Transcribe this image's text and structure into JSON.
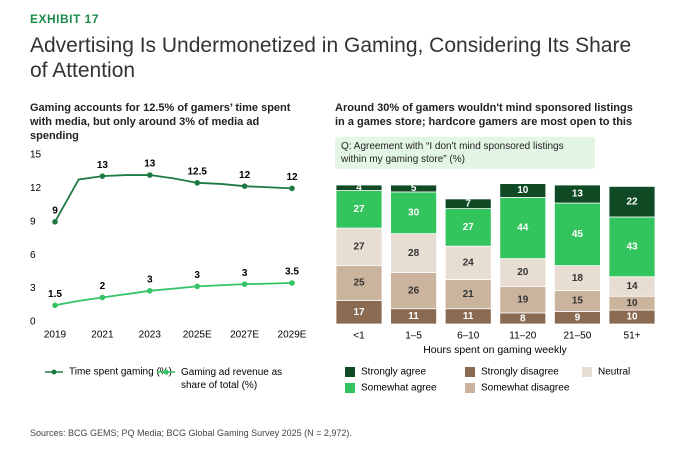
{
  "exhibit": "EXHIBIT 17",
  "title": "Advertising Is Undermonetized in Gaming, Considering Its Share of Attention",
  "source": "Sources: BCG GEMS; PQ Media; BCG Global Gaming Survey 2025 (N = 2,972).",
  "chart_data": [
    {
      "type": "line",
      "title": "Gaming accounts for 12.5% of gamers’ time spent with media, but only around 3% of media ad spending",
      "categories": [
        "2019",
        null,
        "2021",
        null,
        "2023",
        null,
        "2025E",
        null,
        "2027E",
        null,
        "2029E"
      ],
      "series": [
        {
          "name": "Time spent gaming (%)",
          "color": "#1e7a45",
          "values": [
            9,
            12.8,
            13.1,
            13.2,
            13.2,
            12.9,
            12.5,
            12.4,
            12.2,
            12.1,
            12
          ],
          "value_labels": [
            "9",
            null,
            "13",
            null,
            "13",
            null,
            "12.5",
            null,
            "12",
            null,
            "12"
          ]
        },
        {
          "name": "Gaming ad revenue as share of total (%)",
          "color": "#33c463",
          "values": [
            1.5,
            1.9,
            2.2,
            2.5,
            2.8,
            3,
            3.2,
            3.3,
            3.4,
            3.45,
            3.5
          ],
          "value_labels": [
            "1.5",
            null,
            "2",
            null,
            "3",
            null,
            "3",
            null,
            "3",
            null,
            "3.5"
          ]
        }
      ],
      "ylim": [
        0,
        15
      ],
      "yticks": [
        0,
        3,
        6,
        9,
        12,
        15
      ],
      "grid": false
    },
    {
      "type": "stacked_bar",
      "title": "Around 30% of gamers wouldn't mind sponsored listings in a games store; hardcore gamers are most open to this",
      "annotation": "Q: Agreement with “I don't mind sponsored listings within my gaming store” (%)",
      "xlabel": "Hours spent on gaming weekly",
      "categories": [
        "<1",
        "1–5",
        "6–10",
        "11–20",
        "21–50",
        "51+"
      ],
      "series": [
        {
          "name": "Strongly disagree",
          "color": "#8a6a50",
          "values": [
            17,
            11,
            11,
            8,
            9,
            10
          ]
        },
        {
          "name": "Somewhat disagree",
          "color": "#cbb49e",
          "values": [
            25,
            26,
            21,
            19,
            15,
            10
          ]
        },
        {
          "name": "Neutral",
          "color": "#e7ddd2",
          "values": [
            27,
            28,
            24,
            20,
            18,
            14
          ]
        },
        {
          "name": "Somewhat agree",
          "color": "#33c45e",
          "values": [
            27,
            30,
            27,
            44,
            45,
            43
          ]
        },
        {
          "name": "Strongly agree",
          "color": "#0f4a24",
          "values": [
            4,
            5,
            7,
            10,
            13,
            22
          ]
        }
      ],
      "ylim": [
        0,
        100
      ]
    }
  ]
}
